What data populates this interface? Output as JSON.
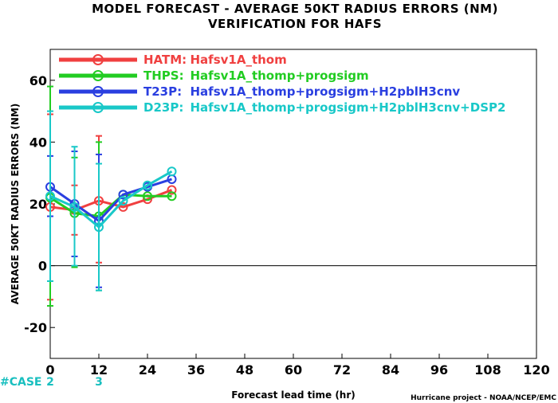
{
  "chart_data": {
    "type": "line",
    "title": "MODEL FORECAST - AVERAGE 50KT RADIUS ERRORS (NM)",
    "subtitle": "VERIFICATION FOR HAFS",
    "xlabel": "Forecast lead time (hr)",
    "ylabel": "AVERAGE 50KT RADIUS ERRORS (NM)",
    "credit": "Hurricane project - NOAA/NCEP/EMC",
    "xlim": [
      0,
      120
    ],
    "ylim": [
      -30,
      70
    ],
    "x_ticks": [
      0,
      12,
      24,
      36,
      48,
      60,
      72,
      84,
      96,
      108,
      120
    ],
    "y_ticks": [
      -20,
      0,
      20,
      40,
      60
    ],
    "legend_position": "top-left",
    "case_label": "#CASE",
    "case_counts": [
      {
        "x": 0,
        "label": "2"
      },
      {
        "x": 12,
        "label": "3"
      }
    ],
    "series": [
      {
        "name": "HATM:",
        "desc": "Hafsv1A_thom",
        "color": "#f04040",
        "x": [
          0,
          6,
          12,
          18,
          24,
          30
        ],
        "y": [
          19,
          18,
          21,
          19,
          21.5,
          24.5
        ],
        "err_low": [
          -11,
          10,
          1,
          null,
          null,
          null
        ],
        "err_high": [
          49,
          26,
          42,
          null,
          null,
          null
        ]
      },
      {
        "name": "THPS:",
        "desc": "Hafsv1A_thomp+progsigm",
        "color": "#22cc22",
        "x": [
          0,
          6,
          12,
          18,
          24,
          30
        ],
        "y": [
          22,
          17,
          16,
          23,
          22.5,
          22.5
        ],
        "err_low": [
          -13,
          -0.5,
          -8,
          null,
          null,
          null
        ],
        "err_high": [
          58,
          35,
          40,
          null,
          null,
          null
        ]
      },
      {
        "name": "T23P:",
        "desc": "Hafsv1A_thomp+progsigm+H2pblH3cnv",
        "color": "#2a3fe0",
        "x": [
          0,
          6,
          12,
          18,
          24,
          30
        ],
        "y": [
          25.5,
          20,
          14.5,
          23,
          25.5,
          28
        ],
        "err_low": [
          16,
          3,
          -7,
          null,
          null,
          null
        ],
        "err_high": [
          35.5,
          37,
          36,
          null,
          null,
          null
        ]
      },
      {
        "name": "D23P:",
        "desc": "Hafsv1A_thomp+progsigm+H2pblH3cnv+DSP2",
        "color": "#19c8c8",
        "x": [
          0,
          6,
          12,
          18,
          24,
          30
        ],
        "y": [
          22.5,
          19,
          12.5,
          21,
          26,
          30.5
        ],
        "err_low": [
          -5,
          0,
          -8,
          null,
          null,
          null
        ],
        "err_high": [
          50,
          38.5,
          33,
          null,
          null,
          null
        ]
      }
    ]
  }
}
